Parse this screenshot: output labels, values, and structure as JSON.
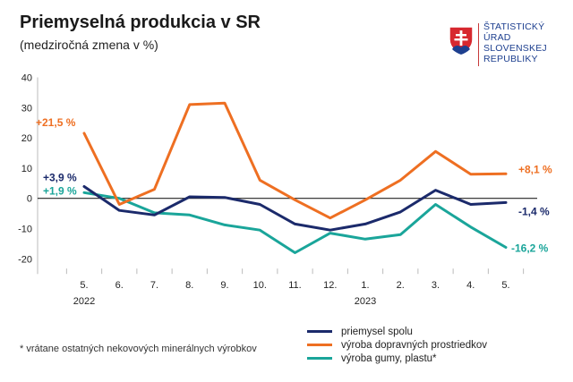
{
  "header": {
    "title": "Priemyselná produkcia v SR",
    "subtitle": "(medziročná zmena v %)"
  },
  "logo": {
    "icon": "slovak-coat-of-arms-icon",
    "lines": [
      "ŠTATISTICKÝ",
      "ÚRAD",
      "SLOVENSKEJ",
      "REPUBLIKY"
    ]
  },
  "footnote": "* vrátane ostatných nekovových minerálnych výrobkov",
  "colors": {
    "navy": "#1b2a6b",
    "orange": "#ee6f22",
    "teal": "#1aa59a",
    "zero": "#222222",
    "grid": "#bbbbbb"
  },
  "chart_data": {
    "type": "line",
    "title": "Priemyselná produkcia v SR",
    "subtitle": "(medziročná zmena v %)",
    "categories": [
      "5.",
      "6.",
      "7.",
      "8.",
      "9.",
      "10.",
      "11.",
      "12.",
      "1.",
      "2.",
      "3.",
      "4.",
      "5."
    ],
    "year_labels": [
      {
        "index": 0,
        "label": "2022"
      },
      {
        "index": 8,
        "label": "2023"
      }
    ],
    "ylim": [
      -25,
      40
    ],
    "yticks": [
      -20,
      -10,
      0,
      10,
      20,
      30,
      40
    ],
    "ytick_labels": [
      "-20",
      "-10",
      "0",
      "10",
      "20",
      "30",
      "40"
    ],
    "grid": false,
    "legend_position": "bottom-right",
    "series": [
      {
        "name": "priemysel spolu",
        "color": "#1b2a6b",
        "values": [
          3.9,
          -4.0,
          -5.5,
          0.5,
          0.3,
          -2.0,
          -8.5,
          -10.5,
          -8.5,
          -4.5,
          2.7,
          -2.0,
          -1.4
        ],
        "start_label": "+3,9 %",
        "end_label": "-1,4 %"
      },
      {
        "name": "výroba dopravných prostriedkov",
        "color": "#ee6f22",
        "values": [
          21.5,
          -2.0,
          3.0,
          31.0,
          31.5,
          6.0,
          -0.5,
          -6.5,
          -0.5,
          6.0,
          15.5,
          8.0,
          8.1
        ],
        "start_label": "+21,5 %",
        "end_label": "+8,1 %"
      },
      {
        "name": "výroba gumy, plastu*",
        "color": "#1aa59a",
        "values": [
          1.9,
          0.0,
          -4.8,
          -5.5,
          -8.8,
          -10.5,
          -18.0,
          -11.5,
          -13.5,
          -12.0,
          -2.0,
          -9.5,
          -16.2
        ],
        "start_label": "+1,9 %",
        "end_label": "-16,2 %"
      }
    ]
  }
}
